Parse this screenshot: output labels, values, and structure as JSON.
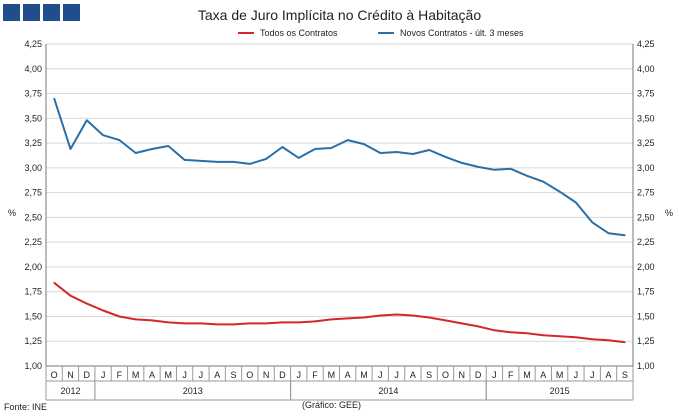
{
  "header": {
    "title": "Taxa de Juro Implícita no Crédito à Habitação"
  },
  "colors": {
    "logo": "#1f4e8c",
    "series_todos": "#d62728",
    "series_novos": "#2a6fa8",
    "grid": "#d9d9d9",
    "axis": "#777777"
  },
  "footer": {
    "source": "Fonte: INE",
    "credit": "(Gráfico:  GEE)"
  },
  "chart_data": {
    "type": "line",
    "title": "Taxa de Juro Implícita no Crédito à Habitação",
    "ylabel_left": "%",
    "ylabel_right": "%",
    "ylim": [
      1.0,
      4.25
    ],
    "ytick_step": 0.25,
    "ytick_labels": [
      "1,00",
      "1,25",
      "1,50",
      "1,75",
      "2,00",
      "2,25",
      "2,50",
      "2,75",
      "3,00",
      "3,25",
      "3,50",
      "3,75",
      "4,00",
      "4,25"
    ],
    "legend_position": "top",
    "grid": true,
    "categories": [
      "O",
      "N",
      "D",
      "J",
      "F",
      "M",
      "A",
      "M",
      "J",
      "J",
      "A",
      "S",
      "O",
      "N",
      "D",
      "J",
      "F",
      "M",
      "A",
      "M",
      "J",
      "J",
      "A",
      "S",
      "O",
      "N",
      "D",
      "J",
      "F",
      "M",
      "A",
      "M",
      "J",
      "J",
      "A",
      "S"
    ],
    "year_labels": [
      {
        "label": "2012",
        "start": 0,
        "end": 2
      },
      {
        "label": "2013",
        "start": 3,
        "end": 14
      },
      {
        "label": "2014",
        "start": 15,
        "end": 26
      },
      {
        "label": "2015",
        "start": 27,
        "end": 35
      }
    ],
    "series": [
      {
        "name": "Todos os Contratos",
        "color": "#d62728",
        "values": [
          1.84,
          1.71,
          1.63,
          1.56,
          1.5,
          1.47,
          1.46,
          1.44,
          1.43,
          1.43,
          1.42,
          1.42,
          1.43,
          1.43,
          1.44,
          1.44,
          1.45,
          1.47,
          1.48,
          1.49,
          1.51,
          1.52,
          1.51,
          1.49,
          1.46,
          1.43,
          1.4,
          1.36,
          1.34,
          1.33,
          1.31,
          1.3,
          1.29,
          1.27,
          1.26,
          1.24
        ]
      },
      {
        "name": "Novos Contratos - últ. 3 meses",
        "color": "#2a6fa8",
        "values": [
          3.7,
          3.19,
          3.48,
          3.33,
          3.28,
          3.15,
          3.19,
          3.22,
          3.08,
          3.07,
          3.06,
          3.06,
          3.04,
          3.09,
          3.21,
          3.1,
          3.19,
          3.2,
          3.28,
          3.24,
          3.15,
          3.16,
          3.14,
          3.18,
          3.11,
          3.05,
          3.01,
          2.98,
          2.99,
          2.92,
          2.86,
          2.76,
          2.65,
          2.45,
          2.34,
          2.32
        ]
      }
    ]
  }
}
